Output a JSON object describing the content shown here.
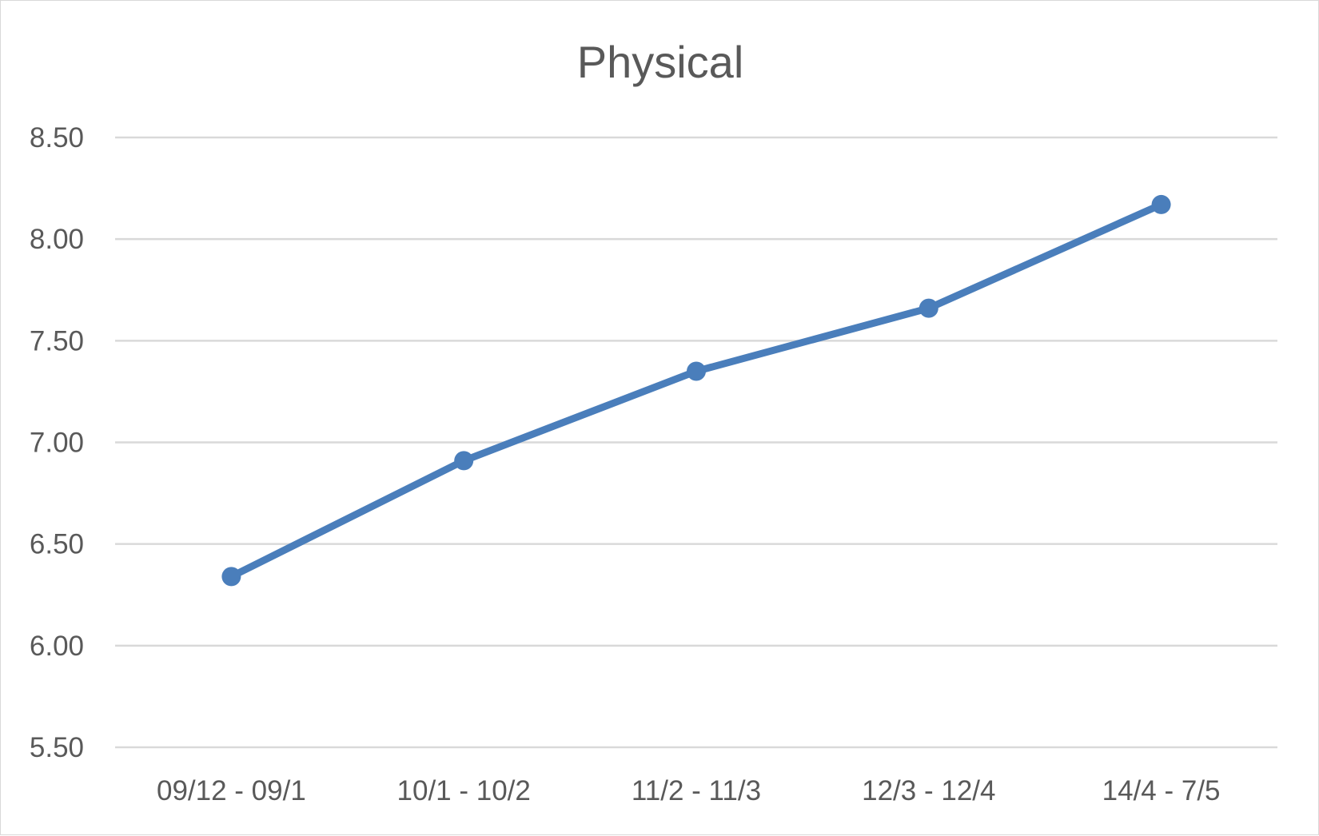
{
  "chart_data": {
    "type": "line",
    "title": "Physical",
    "xlabel": "",
    "ylabel": "",
    "categories": [
      "09/12 - 09/1",
      "10/1 - 10/2",
      "11/2 - 11/3",
      "12/3 - 12/4",
      "14/4 - 7/5"
    ],
    "series": [
      {
        "values": [
          6.34,
          6.91,
          7.35,
          7.66,
          8.17
        ]
      }
    ],
    "ylim": [
      5.5,
      8.5
    ],
    "yticks": [
      "5.50",
      "6.00",
      "6.50",
      "7.00",
      "7.50",
      "8.00",
      "8.50"
    ],
    "grid": true,
    "legend": "none",
    "colors": {
      "series": "#4a7ebb",
      "grid": "#d9d9d9",
      "text": "#595959"
    }
  }
}
